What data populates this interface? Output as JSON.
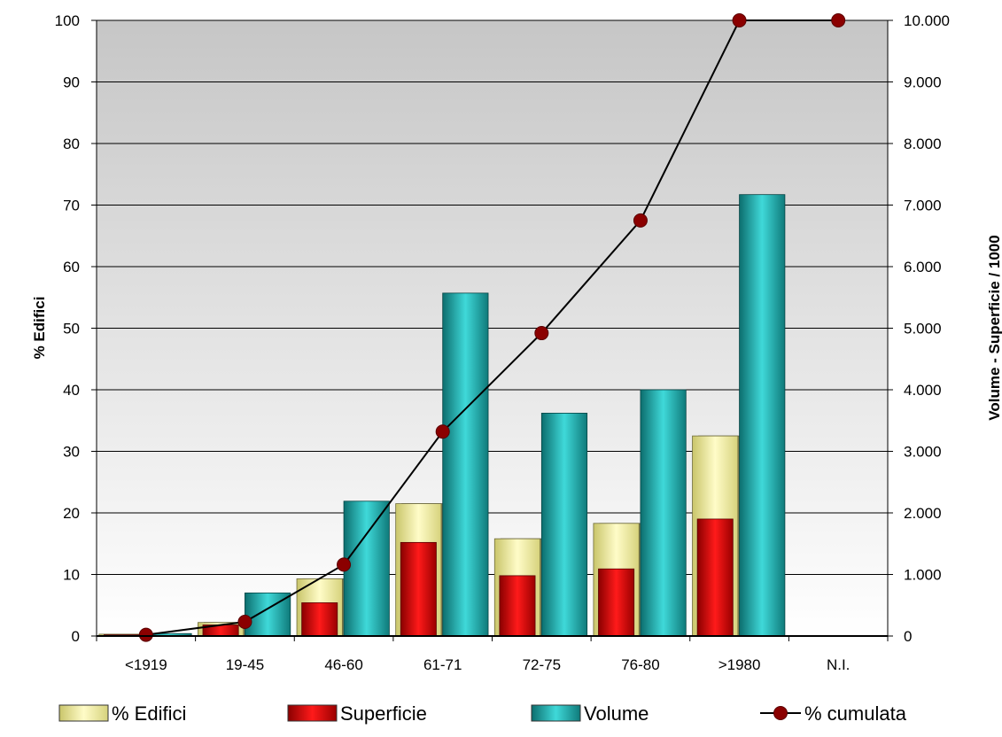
{
  "chart_data": {
    "type": "bar",
    "categories": [
      "<1919",
      "19-45",
      "46-60",
      "61-71",
      "72-75",
      "76-80",
      ">1980",
      "N.I."
    ],
    "series": [
      {
        "name": "% Edifici",
        "axis": "left",
        "kind": "bar",
        "values": [
          0.3,
          2.2,
          9.3,
          21.5,
          15.8,
          18.3,
          32.5,
          0
        ],
        "color": "#f5f2a0"
      },
      {
        "name": "Superficie",
        "axis": "right",
        "kind": "bar",
        "values": [
          20,
          180,
          540,
          1520,
          980,
          1090,
          1900,
          0
        ],
        "color": "#e00000"
      },
      {
        "name": "Volume",
        "axis": "right",
        "kind": "bar",
        "values": [
          40,
          700,
          2190,
          5570,
          3620,
          4000,
          7170,
          0
        ],
        "color": "#1fb3b3"
      },
      {
        "name": "% cumulata",
        "axis": "left",
        "kind": "line",
        "values": [
          0.2,
          2.3,
          11.6,
          33.2,
          49.2,
          67.5,
          100,
          100
        ],
        "color": "#8b0000"
      }
    ],
    "ylabel": "% Edifici",
    "y2label": "Volume - Superficie / 1000",
    "ylim": [
      0,
      100
    ],
    "y2lim": [
      0,
      10000
    ],
    "yticks": [
      "0",
      "10",
      "20",
      "30",
      "40",
      "50",
      "60",
      "70",
      "80",
      "90",
      "100"
    ],
    "y2ticks": [
      "0",
      "1.000",
      "2.000",
      "3.000",
      "4.000",
      "5.000",
      "6.000",
      "7.000",
      "8.000",
      "9.000",
      "10.000"
    ],
    "grid": true,
    "legend_position": "bottom"
  }
}
